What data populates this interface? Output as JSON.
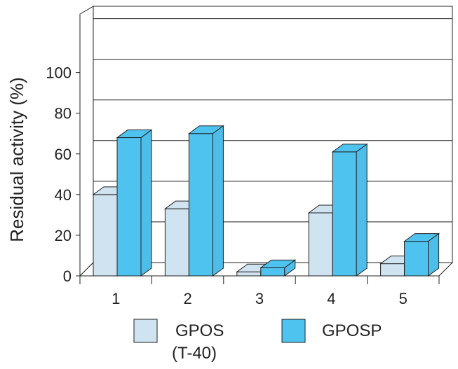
{
  "chart_data": {
    "type": "bar",
    "categories": [
      "1",
      "2",
      "3",
      "4",
      "5"
    ],
    "series": [
      {
        "name": "GPOS (T-40)",
        "values": [
          40,
          33,
          2,
          31,
          6
        ],
        "color": "#cfe3f1"
      },
      {
        "name": "GPOSP",
        "values": [
          68,
          70,
          4,
          61,
          17
        ],
        "color": "#4fc3f0"
      }
    ],
    "ylabel": "Residual activity (%)",
    "ylim": [
      0,
      120
    ],
    "yticks": [
      0,
      20,
      40,
      60,
      80,
      100
    ],
    "grid": true,
    "legend_position": "bottom",
    "legend": {
      "gpos_line1": "GPOS",
      "gpos_line2": "(T-40)",
      "gposp": "GPOSP"
    }
  }
}
